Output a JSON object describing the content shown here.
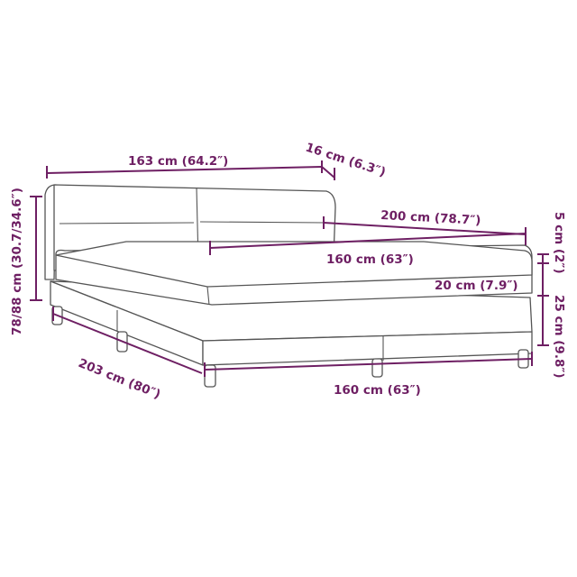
{
  "colors": {
    "dimension": "#6e1f63",
    "outline": "#555555"
  },
  "dimensions": {
    "headboard_width": "163 cm (64.2″)",
    "headboard_depth": "16 cm (6.3″)",
    "length": "200 cm (78.7″)",
    "mattress_width": "160 cm (63″)",
    "topper_height": "5 cm (2″)",
    "mattress_height": "20 cm (7.9″)",
    "base_height": "25 cm (9.8″)",
    "total_height": "78/88 cm (30.7/34.6″)",
    "total_length": "203 cm (80″)",
    "base_width": "160 cm (63″)"
  }
}
